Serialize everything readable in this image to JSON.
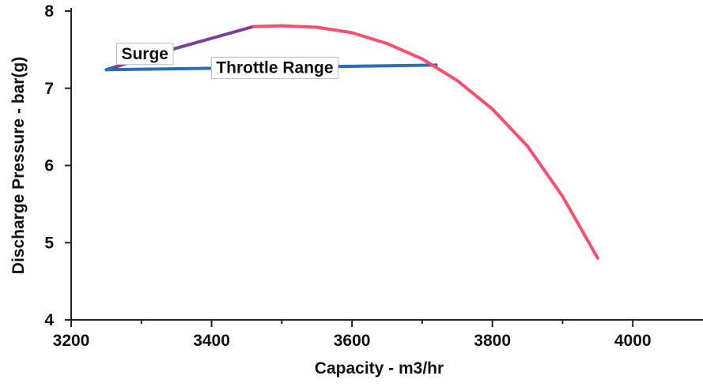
{
  "chart_data": {
    "type": "line",
    "title": "",
    "xlabel": "Capacity - m3/hr",
    "ylabel": "Discharge Pressure - bar(g)",
    "xlim": [
      3200,
      4100
    ],
    "ylim": [
      4,
      8
    ],
    "x_ticks": [
      3200,
      3400,
      3600,
      3800,
      4000
    ],
    "x_minor_step": 100,
    "y_ticks": [
      4,
      5,
      6,
      7,
      8
    ],
    "grid": false,
    "legend": "none",
    "series": [
      {
        "color": "#7b3f98",
        "x": [
          3250,
          3350,
          3460
        ],
        "y": [
          7.24,
          7.52,
          7.8
        ]
      },
      {
        "color": "#2a6ebb",
        "x": [
          3250,
          3720
        ],
        "y": [
          7.24,
          7.3
        ]
      },
      {
        "color": "#ff4d6d",
        "x": [
          3460,
          3500,
          3550,
          3600,
          3650,
          3700,
          3750,
          3800,
          3850,
          3900,
          3950
        ],
        "y": [
          7.8,
          7.81,
          7.79,
          7.72,
          7.58,
          7.38,
          7.1,
          6.73,
          6.25,
          5.6,
          4.8
        ]
      }
    ],
    "annotations": [
      {
        "text": "Surge",
        "x": 3305,
        "y": 7.45
      },
      {
        "text": "Throttle Range",
        "x": 3490,
        "y": 7.27
      }
    ]
  }
}
